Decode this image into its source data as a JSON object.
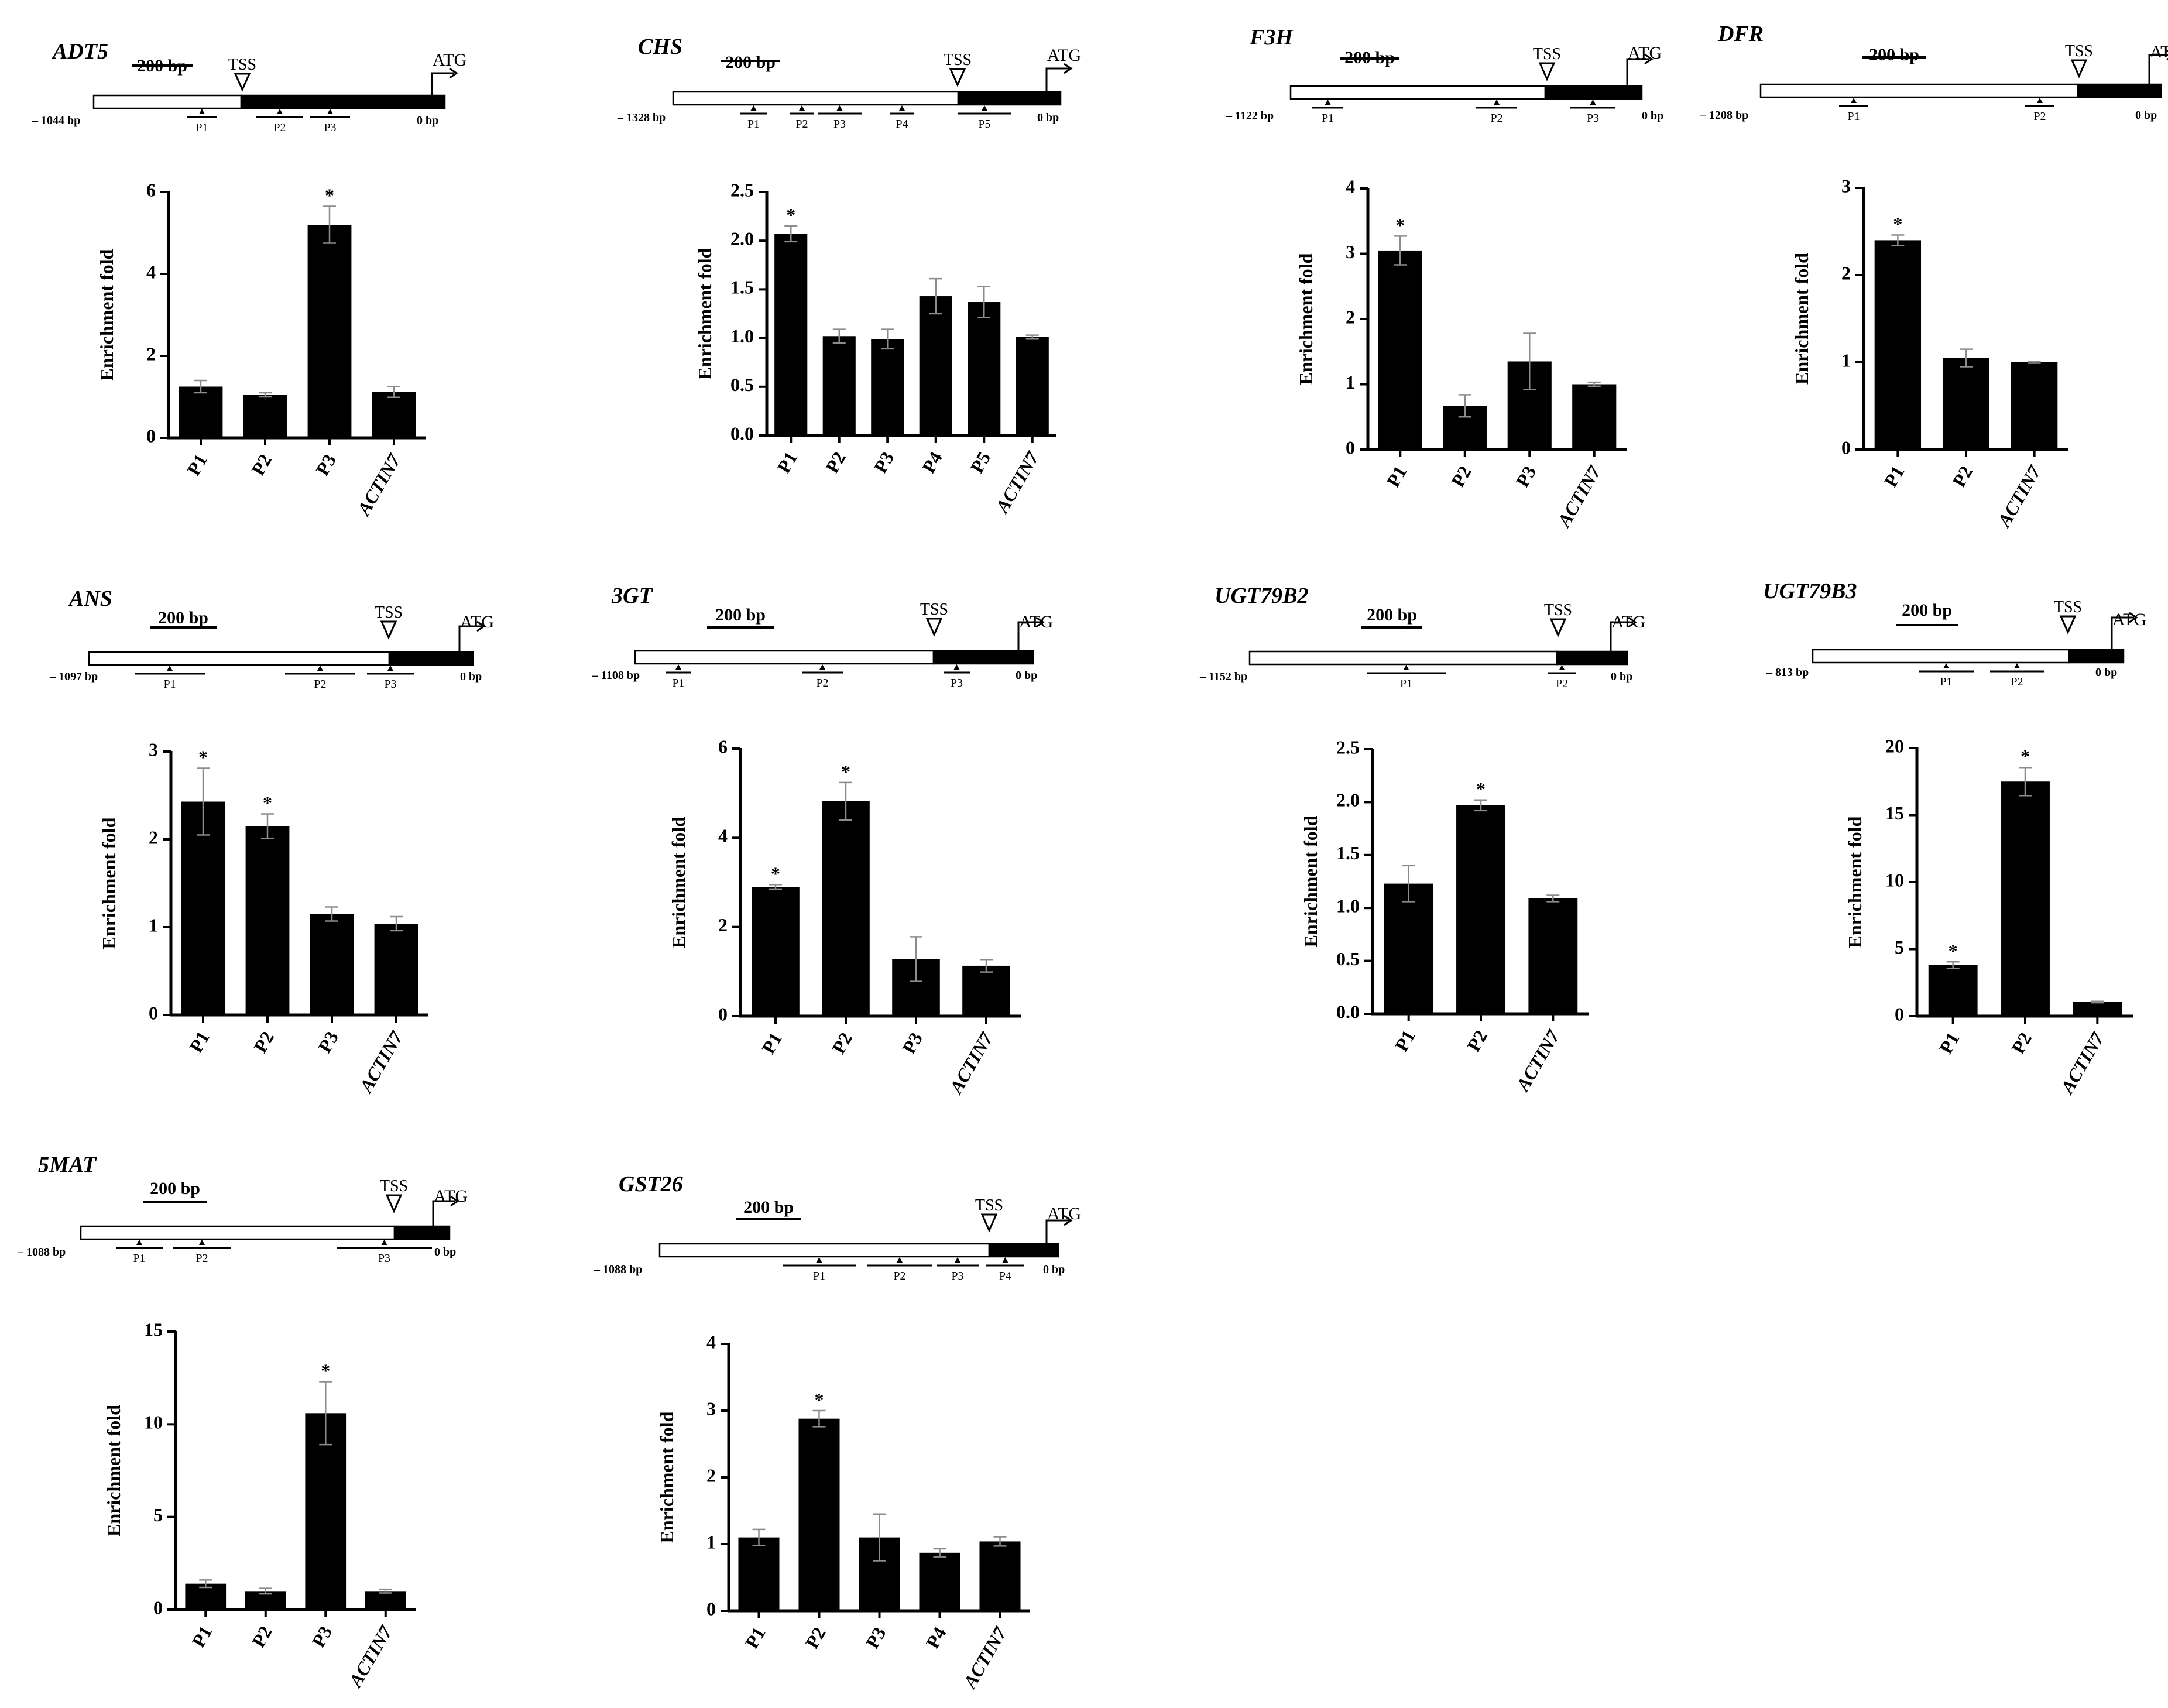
{
  "figure": {
    "ylabel": "Enrichment fold",
    "tss_label": "TSS",
    "atg_label": "ATG",
    "scale_label": "200 bp",
    "end_label": "0 bp",
    "significance_mark": "*"
  },
  "chart_data": [
    {
      "type": "bar",
      "gene": "ADT5",
      "start_label": "– 1044 bp",
      "promoter_primers": [
        "P1",
        "P2",
        "P3"
      ],
      "categories": [
        "P1",
        "P2",
        "P3",
        "ACTIN7"
      ],
      "values": [
        1.25,
        1.05,
        5.2,
        1.12
      ],
      "errors": [
        0.15,
        0.05,
        0.45,
        0.13
      ],
      "significant": [
        false,
        false,
        true,
        false
      ],
      "ylim": [
        0,
        6
      ],
      "yticks": [
        "0",
        "2",
        "4",
        "6"
      ],
      "ylabel": "Enrichment fold"
    },
    {
      "type": "bar",
      "gene": "CHS",
      "start_label": "– 1328 bp",
      "promoter_primers": [
        "P1",
        "P2",
        "P3",
        "P4",
        "P5"
      ],
      "categories": [
        "P1",
        "P2",
        "P3",
        "P4",
        "P5",
        "ACTIN7"
      ],
      "values": [
        2.07,
        1.02,
        0.99,
        1.43,
        1.37,
        1.01
      ],
      "errors": [
        0.08,
        0.07,
        0.1,
        0.18,
        0.16,
        0.02
      ],
      "significant": [
        true,
        false,
        false,
        false,
        false,
        false
      ],
      "ylim": [
        0,
        2.5
      ],
      "yticks": [
        "0.0",
        "0.5",
        "1.0",
        "1.5",
        "2.0",
        "2.5"
      ],
      "ylabel": "Enrichment fold"
    },
    {
      "type": "bar",
      "gene": "F3H",
      "start_label": "– 1122 bp",
      "promoter_primers": [
        "P1",
        "P2",
        "P3"
      ],
      "categories": [
        "P1",
        "P2",
        "P3",
        "ACTIN7"
      ],
      "values": [
        3.05,
        0.67,
        1.35,
        1.0
      ],
      "errors": [
        0.22,
        0.17,
        0.43,
        0.03
      ],
      "significant": [
        true,
        false,
        false,
        false
      ],
      "ylim": [
        0,
        4
      ],
      "yticks": [
        "0",
        "1",
        "2",
        "3",
        "4"
      ],
      "ylabel": "Enrichment fold"
    },
    {
      "type": "bar",
      "gene": "DFR",
      "start_label": "– 1208 bp",
      "promoter_primers": [
        "P1",
        "P2"
      ],
      "categories": [
        "P1",
        "P2",
        "ACTIN7"
      ],
      "values": [
        2.4,
        1.05,
        1.0
      ],
      "errors": [
        0.06,
        0.1,
        0.01
      ],
      "significant": [
        true,
        false,
        false
      ],
      "ylim": [
        0,
        3
      ],
      "yticks": [
        "0",
        "1",
        "2",
        "3"
      ],
      "ylabel": "Enrichment fold"
    },
    {
      "type": "bar",
      "gene": "ANS",
      "start_label": "– 1097 bp",
      "promoter_primers": [
        "P1",
        "P2",
        "P3"
      ],
      "categories": [
        "P1",
        "P2",
        "P3",
        "ACTIN7"
      ],
      "values": [
        2.43,
        2.15,
        1.15,
        1.04
      ],
      "errors": [
        0.38,
        0.14,
        0.08,
        0.08
      ],
      "significant": [
        true,
        true,
        false,
        false
      ],
      "ylim": [
        0,
        3
      ],
      "yticks": [
        "0",
        "1",
        "2",
        "3"
      ],
      "ylabel": "Enrichment fold"
    },
    {
      "type": "bar",
      "gene": "3GT",
      "start_label": "– 1108 bp",
      "promoter_primers": [
        "P1",
        "P2",
        "P3"
      ],
      "categories": [
        "P1",
        "P2",
        "P3",
        "ACTIN7"
      ],
      "values": [
        2.9,
        4.82,
        1.28,
        1.13
      ],
      "errors": [
        0.05,
        0.42,
        0.5,
        0.14
      ],
      "significant": [
        true,
        true,
        false,
        false
      ],
      "ylim": [
        0,
        6
      ],
      "yticks": [
        "0",
        "2",
        "4",
        "6"
      ],
      "ylabel": "Enrichment fold"
    },
    {
      "type": "bar",
      "gene": "UGT79B2",
      "start_label": "– 1152 bp",
      "promoter_primers": [
        "P1",
        "P2"
      ],
      "categories": [
        "P1",
        "P2",
        "ACTIN7"
      ],
      "values": [
        1.23,
        1.97,
        1.09
      ],
      "errors": [
        0.17,
        0.05,
        0.03
      ],
      "significant": [
        false,
        true,
        false
      ],
      "ylim": [
        0,
        2.5
      ],
      "yticks": [
        "0.0",
        "0.5",
        "1.0",
        "1.5",
        "2.0",
        "2.5"
      ],
      "ylabel": "Enrichment fold"
    },
    {
      "type": "bar",
      "gene": "UGT79B3",
      "start_label": "– 813 bp",
      "promoter_primers": [
        "P1",
        "P2"
      ],
      "categories": [
        "P1",
        "P2",
        "ACTIN7"
      ],
      "values": [
        3.8,
        17.5,
        1.05
      ],
      "errors": [
        0.25,
        1.05,
        0.05
      ],
      "significant": [
        true,
        true,
        false
      ],
      "ylim": [
        0,
        20
      ],
      "yticks": [
        "0",
        "5",
        "10",
        "15",
        "20"
      ],
      "ylabel": "Enrichment fold"
    },
    {
      "type": "bar",
      "gene": "5MAT",
      "start_label": "– 1088 bp",
      "promoter_primers": [
        "P1",
        "P2",
        "P3"
      ],
      "categories": [
        "P1",
        "P2",
        "P3",
        "ACTIN7"
      ],
      "values": [
        1.4,
        1.0,
        10.6,
        1.0
      ],
      "errors": [
        0.2,
        0.15,
        1.7,
        0.1
      ],
      "significant": [
        false,
        false,
        true,
        false
      ],
      "ylim": [
        0,
        15
      ],
      "yticks": [
        "0",
        "5",
        "10",
        "15"
      ],
      "ylabel": "Enrichment fold"
    },
    {
      "type": "bar",
      "gene": "GST26",
      "start_label": "– 1088 bp",
      "promoter_primers": [
        "P1",
        "P2",
        "P3",
        "P4"
      ],
      "categories": [
        "P1",
        "P2",
        "P3",
        "P4",
        "ACTIN7"
      ],
      "values": [
        1.1,
        2.88,
        1.1,
        0.87,
        1.04
      ],
      "errors": [
        0.12,
        0.12,
        0.35,
        0.06,
        0.07
      ],
      "significant": [
        false,
        true,
        false,
        false,
        false
      ],
      "ylim": [
        0,
        4
      ],
      "yticks": [
        "0",
        "1",
        "2",
        "3",
        "4"
      ],
      "ylabel": "Enrichment fold"
    }
  ]
}
